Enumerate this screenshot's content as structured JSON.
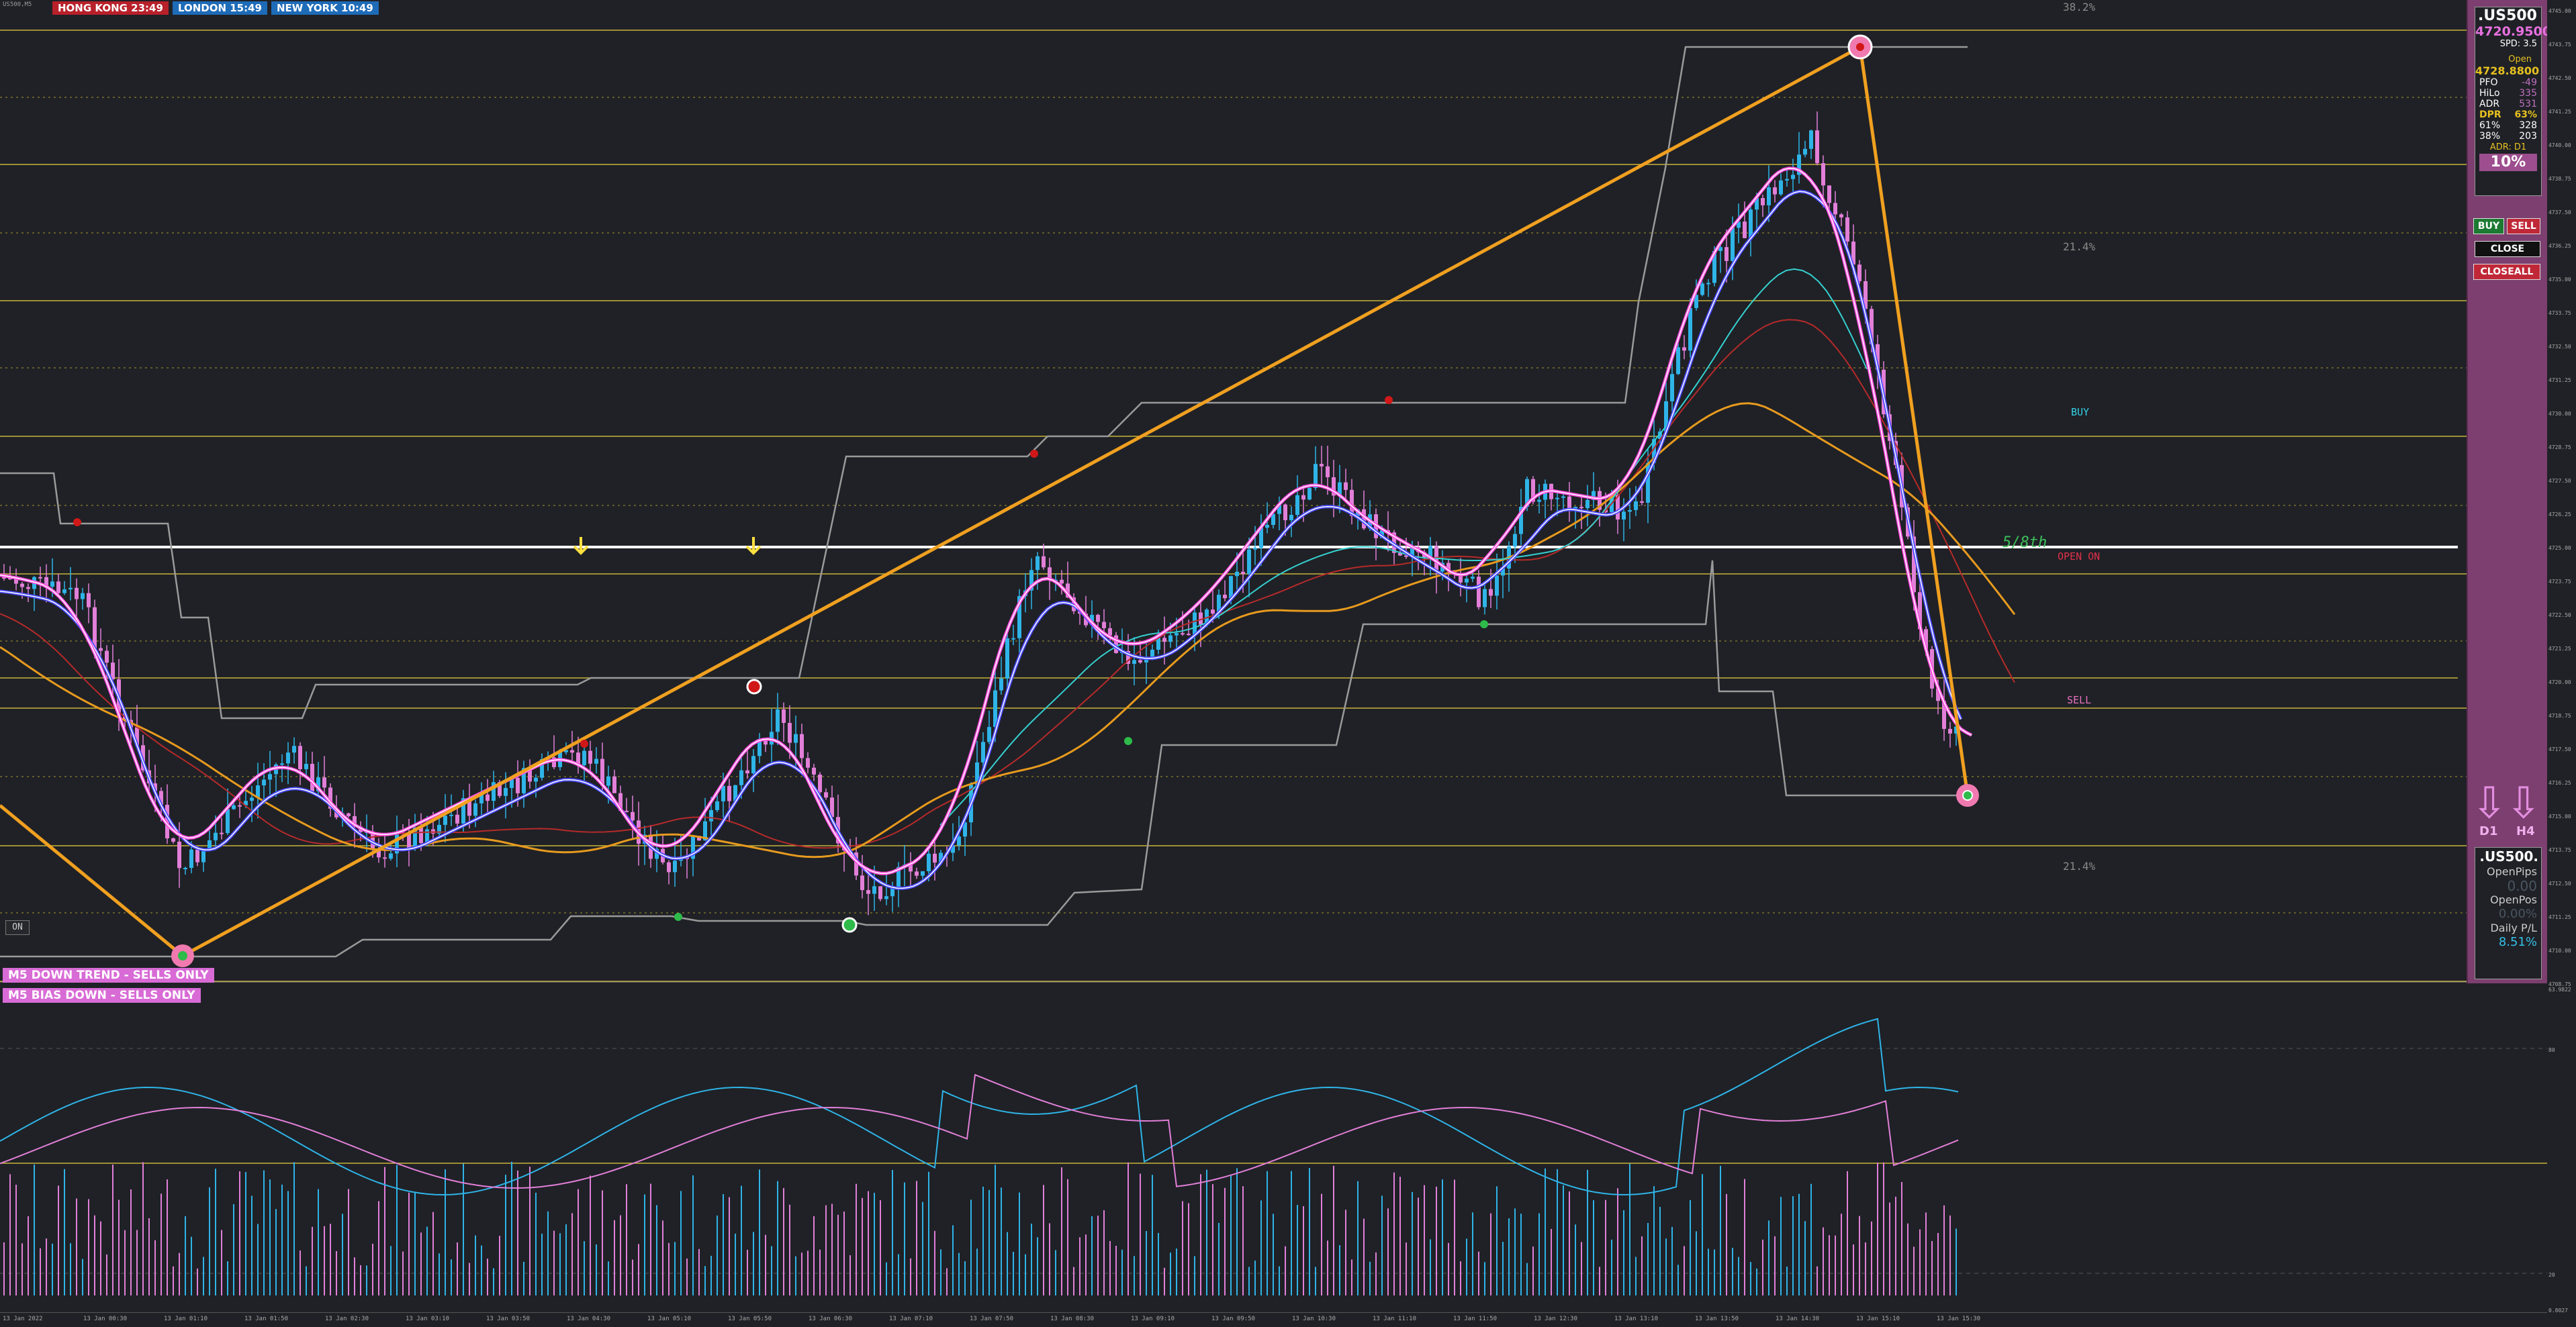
{
  "symbol_small": "US500,M5",
  "sessions": [
    {
      "label": "HONG KONG  23:49",
      "color": "#b8202a"
    },
    {
      "label": "LONDON  15:49",
      "color": "#1e6bb8"
    },
    {
      "label": "NEW YORK  10:49",
      "color": "#1e6bb8"
    }
  ],
  "chart_labels": {
    "fib_top": "38.2%",
    "fib_mid": "21.4%",
    "fib_low": "21.4%",
    "buy": "BUY",
    "five_eighth": "5/8th",
    "open_on": "OPEN ON",
    "sell": "SELL"
  },
  "banners": {
    "trend": "M5  DOWN TREND - SELLS ONLY",
    "bias": "M5  BIAS DOWN - SELLS ONLY"
  },
  "on_button": "ON",
  "panel": {
    "symbol": ".US500",
    "bid": "4720.9500",
    "spread": "SPD: 3.5",
    "open_label": "Open",
    "open_value": "4728.8800",
    "stats": [
      {
        "k": "PFO",
        "v": "-49"
      },
      {
        "k": "HiLo",
        "v": "335"
      },
      {
        "k": "ADR",
        "v": "531"
      },
      {
        "k": "DPR",
        "v": "63%"
      },
      {
        "k": "61%",
        "v": "328"
      },
      {
        "k": "38%",
        "v": "203"
      }
    ],
    "adr_label": "ADR: D1",
    "adr_pct": "10%",
    "buy_btn": "BUY",
    "sell_btn": "SELL",
    "close_btn": "CLOSE",
    "closeall_btn": "CLOSEALL",
    "tf1": "D1",
    "tf2": "H4",
    "box2_symbol": ".US500.",
    "open_pips_label": "OpenPips",
    "open_pips_value": "0.00",
    "open_pos_label": "OpenPos",
    "open_pos_value": "0.00%",
    "daily_pl_label": "Daily P/L",
    "daily_pl_value": "8.51%"
  },
  "price_ticks": [
    "4745.00",
    "4743.75",
    "4742.50",
    "4741.25",
    "4740.00",
    "4738.75",
    "4737.50",
    "4736.25",
    "4735.00",
    "4733.75",
    "4732.50",
    "4731.25",
    "4730.00",
    "4728.75",
    "4727.50",
    "4726.25",
    "4725.00",
    "4723.75",
    "4722.50",
    "4721.25",
    "4720.00",
    "4718.75",
    "4717.50",
    "4716.25",
    "4715.00",
    "4713.75",
    "4712.50",
    "4711.25",
    "4710.00",
    "4708.75"
  ],
  "time_ticks": [
    "13 Jan 2022",
    "13 Jan 00:30",
    "13 Jan 01:10",
    "13 Jan 01:50",
    "13 Jan 02:30",
    "13 Jan 03:10",
    "13 Jan 03:50",
    "13 Jan 04:30",
    "13 Jan 05:10",
    "13 Jan 05:50",
    "13 Jan 06:30",
    "13 Jan 07:10",
    "13 Jan 07:50",
    "13 Jan 08:30",
    "13 Jan 09:10",
    "13 Jan 09:50",
    "13 Jan 10:30",
    "13 Jan 11:10",
    "13 Jan 11:50",
    "13 Jan 12:30",
    "13 Jan 13:10",
    "13 Jan 13:50",
    "13 Jan 14:30",
    "13 Jan 15:10",
    "13 Jan 15:30"
  ],
  "osc_ticks": [
    "63.9822",
    "80",
    "20",
    "0.8027"
  ]
}
